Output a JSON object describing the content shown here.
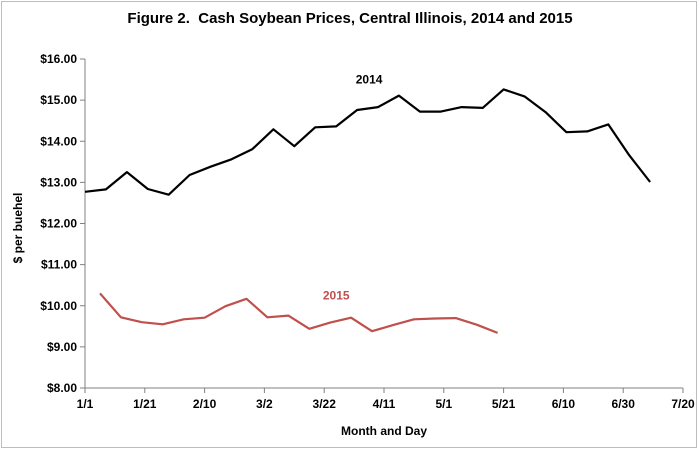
{
  "chart_data": {
    "type": "line",
    "title": "Figure 2.  Cash Soybean Prices, Central Illinois, 2014 and 2015",
    "xlabel": "Month and Day",
    "ylabel": "$ per buehel",
    "ylim": [
      8,
      16
    ],
    "yticks": [
      "$8.00",
      "$9.00",
      "$10.00",
      "$11.00",
      "$12.00",
      "$13.00",
      "$14.00",
      "$15.00",
      "$16.00"
    ],
    "xticks": [
      "1/1",
      "1/21",
      "2/10",
      "3/2",
      "3/22",
      "4/11",
      "5/1",
      "5/21",
      "6/10",
      "6/30",
      "7/20"
    ],
    "grid": false,
    "legend": "inline labels",
    "series": [
      {
        "name": "2014",
        "color": "#000000",
        "x": [
          "1/1",
          "1/8",
          "1/15",
          "1/22",
          "1/29",
          "2/5",
          "2/12",
          "2/19",
          "2/26",
          "3/5",
          "3/12",
          "3/19",
          "3/26",
          "4/2",
          "4/9",
          "4/16",
          "4/23",
          "4/30",
          "5/7",
          "5/14",
          "5/21",
          "5/28",
          "6/4",
          "6/11",
          "6/18",
          "6/25",
          "7/2",
          "7/9"
        ],
        "values": [
          12.77,
          12.83,
          13.25,
          12.84,
          12.7,
          13.18,
          13.38,
          13.56,
          13.81,
          14.29,
          13.88,
          14.34,
          14.36,
          14.76,
          14.83,
          15.11,
          14.72,
          14.72,
          14.83,
          14.81,
          15.26,
          15.09,
          14.71,
          14.22,
          14.24,
          14.41,
          13.66,
          13.01
        ]
      },
      {
        "name": "2015",
        "color": "#c0504d",
        "x": [
          "1/6",
          "1/13",
          "1/20",
          "1/27",
          "2/3",
          "2/10",
          "2/17",
          "2/24",
          "3/3",
          "3/10",
          "3/17",
          "3/24",
          "3/31",
          "4/7",
          "4/14",
          "4/21",
          "4/28",
          "5/5",
          "5/12",
          "5/19"
        ],
        "values": [
          10.3,
          9.72,
          9.6,
          9.55,
          9.67,
          9.71,
          9.99,
          10.17,
          9.72,
          9.76,
          9.44,
          9.59,
          9.71,
          9.38,
          9.53,
          9.67,
          9.69,
          9.7,
          9.54,
          9.34
        ]
      }
    ]
  }
}
